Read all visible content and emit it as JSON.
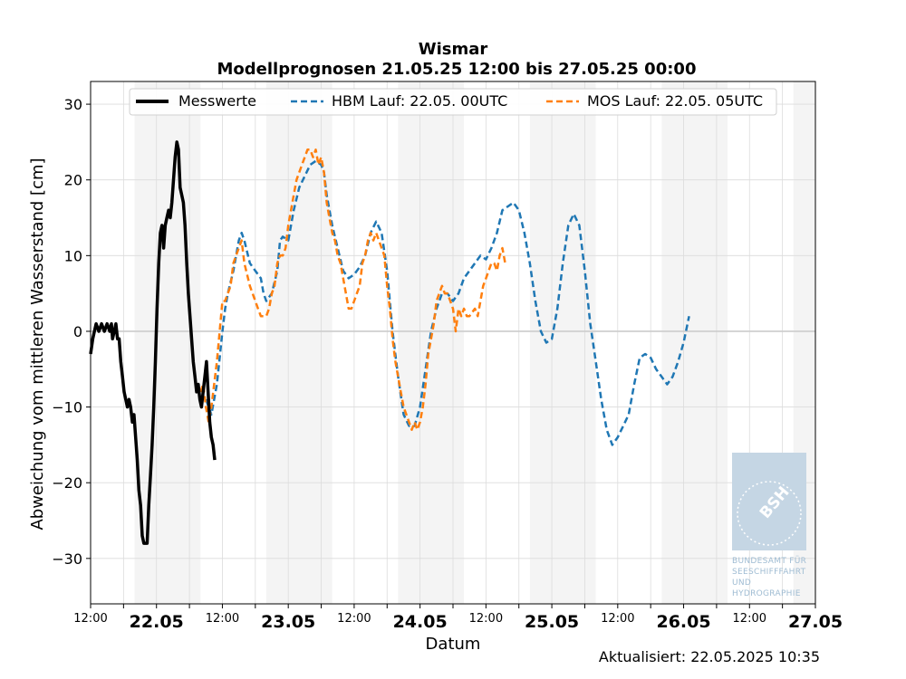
{
  "chart_data": {
    "type": "line",
    "title": "Wismar",
    "subtitle": "Modellprognosen 21.05.25 12:00 bis 27.05.25 00:00",
    "xlabel": "Datum",
    "ylabel": "Abweichung vom mittleren Wasserstand [cm]",
    "ylim": [
      -36,
      33
    ],
    "yticks": [
      -30,
      -20,
      -10,
      0,
      10,
      20,
      30
    ],
    "xlim": [
      0,
      132
    ],
    "x_unit": "hours since 21.05.25 12:00",
    "x_tick_labels": [
      {
        "x": 0,
        "label": "12:00",
        "major": false
      },
      {
        "x": 12,
        "label": "22.05",
        "major": true
      },
      {
        "x": 24,
        "label": "12:00",
        "major": false
      },
      {
        "x": 36,
        "label": "23.05",
        "major": true
      },
      {
        "x": 48,
        "label": "12:00",
        "major": false
      },
      {
        "x": 60,
        "label": "24.05",
        "major": true
      },
      {
        "x": 72,
        "label": "12:00",
        "major": false
      },
      {
        "x": 84,
        "label": "25.05",
        "major": true
      },
      {
        "x": 96,
        "label": "12:00",
        "major": false
      },
      {
        "x": 108,
        "label": "26.05",
        "major": true
      },
      {
        "x": 120,
        "label": "12:00",
        "major": false
      },
      {
        "x": 132,
        "label": "27.05",
        "major": true
      }
    ],
    "night_bands": [
      [
        8,
        20
      ],
      [
        32,
        44
      ],
      [
        56,
        68
      ],
      [
        80,
        92
      ],
      [
        104,
        116
      ],
      [
        128,
        132
      ]
    ],
    "grid": true,
    "legend_position": "top",
    "series": [
      {
        "name": "Messwerte",
        "style": "solid",
        "color": "#000000",
        "points": [
          [
            0,
            -3
          ],
          [
            0.4,
            -1
          ],
          [
            0.7,
            0
          ],
          [
            1,
            1
          ],
          [
            1.5,
            0
          ],
          [
            2,
            1
          ],
          [
            2.5,
            0
          ],
          [
            3,
            1
          ],
          [
            3.5,
            0
          ],
          [
            3.8,
            1
          ],
          [
            4,
            -1
          ],
          [
            4.3,
            0
          ],
          [
            4.6,
            1
          ],
          [
            4.9,
            -1
          ],
          [
            5.2,
            -1
          ],
          [
            5.5,
            -4
          ],
          [
            5.8,
            -6
          ],
          [
            6.1,
            -8
          ],
          [
            6.4,
            -9
          ],
          [
            6.7,
            -10
          ],
          [
            7,
            -9
          ],
          [
            7.3,
            -10
          ],
          [
            7.6,
            -12
          ],
          [
            7.9,
            -11
          ],
          [
            8.2,
            -14
          ],
          [
            8.5,
            -17
          ],
          [
            8.8,
            -21
          ],
          [
            9.1,
            -23
          ],
          [
            9.4,
            -27
          ],
          [
            9.7,
            -28
          ],
          [
            10,
            -28
          ],
          [
            10.3,
            -28
          ],
          [
            10.6,
            -23
          ],
          [
            10.9,
            -19
          ],
          [
            11.2,
            -15
          ],
          [
            11.5,
            -10
          ],
          [
            11.8,
            -4
          ],
          [
            12.1,
            3
          ],
          [
            12.4,
            9
          ],
          [
            12.7,
            13
          ],
          [
            13,
            14
          ],
          [
            13.3,
            11
          ],
          [
            13.6,
            14
          ],
          [
            13.9,
            15
          ],
          [
            14.2,
            16
          ],
          [
            14.5,
            15
          ],
          [
            14.8,
            17
          ],
          [
            15.1,
            20
          ],
          [
            15.4,
            23
          ],
          [
            15.7,
            25
          ],
          [
            16,
            24
          ],
          [
            16.3,
            19
          ],
          [
            16.6,
            18
          ],
          [
            16.9,
            17
          ],
          [
            17.2,
            14
          ],
          [
            17.5,
            9
          ],
          [
            17.8,
            5
          ],
          [
            18.1,
            2
          ],
          [
            18.4,
            -1
          ],
          [
            18.7,
            -4
          ],
          [
            19,
            -6
          ],
          [
            19.3,
            -8
          ],
          [
            19.6,
            -7
          ],
          [
            19.9,
            -9
          ],
          [
            20.2,
            -10
          ],
          [
            20.5,
            -8
          ],
          [
            20.8,
            -6
          ],
          [
            21.1,
            -4
          ],
          [
            21.4,
            -8
          ],
          [
            21.7,
            -12
          ],
          [
            22,
            -14
          ],
          [
            22.3,
            -15
          ],
          [
            22.6,
            -17
          ]
        ]
      },
      {
        "name": "HBM Lauf: 22.05. 00UTC",
        "style": "dashed",
        "color": "#1f77b4",
        "points": [
          [
            21,
            -9
          ],
          [
            22,
            -11
          ],
          [
            23,
            -7
          ],
          [
            24,
            0
          ],
          [
            24.5,
            3
          ],
          [
            25,
            5
          ],
          [
            26,
            8
          ],
          [
            27,
            12
          ],
          [
            27.5,
            13
          ],
          [
            28,
            12
          ],
          [
            29,
            9
          ],
          [
            30,
            8
          ],
          [
            31,
            7
          ],
          [
            31.5,
            5
          ],
          [
            32,
            4
          ],
          [
            33,
            5
          ],
          [
            34,
            8
          ],
          [
            34.5,
            12
          ],
          [
            35,
            12.5
          ],
          [
            36,
            12
          ],
          [
            37,
            16
          ],
          [
            38,
            19
          ],
          [
            39,
            20.5
          ],
          [
            40,
            22
          ],
          [
            41,
            22.5
          ],
          [
            42,
            22
          ],
          [
            42.5,
            21
          ],
          [
            43,
            18
          ],
          [
            44,
            14
          ],
          [
            45,
            11
          ],
          [
            46,
            8
          ],
          [
            47,
            7
          ],
          [
            48,
            7.5
          ],
          [
            49,
            8.5
          ],
          [
            50,
            10
          ],
          [
            51,
            13
          ],
          [
            52,
            14.5
          ],
          [
            53,
            13
          ],
          [
            54,
            8
          ],
          [
            55,
            0
          ],
          [
            56,
            -6
          ],
          [
            57,
            -11
          ],
          [
            58,
            -12.5
          ],
          [
            59,
            -12.5
          ],
          [
            60,
            -10
          ],
          [
            61,
            -5
          ],
          [
            62,
            0
          ],
          [
            63,
            3
          ],
          [
            64,
            5
          ],
          [
            65,
            5
          ],
          [
            66,
            4
          ],
          [
            67,
            5
          ],
          [
            68,
            7
          ],
          [
            69,
            8
          ],
          [
            70,
            9
          ],
          [
            71,
            10
          ],
          [
            72,
            9.5
          ],
          [
            73,
            11
          ],
          [
            74,
            13
          ],
          [
            75,
            16
          ],
          [
            76,
            16.5
          ],
          [
            77,
            17
          ],
          [
            78,
            16
          ],
          [
            79,
            13
          ],
          [
            80,
            9
          ],
          [
            81,
            4
          ],
          [
            82,
            0
          ],
          [
            83,
            -1.5
          ],
          [
            84,
            -1
          ],
          [
            85,
            3
          ],
          [
            86,
            9
          ],
          [
            87,
            14
          ],
          [
            88,
            15.5
          ],
          [
            89,
            14
          ],
          [
            90,
            8
          ],
          [
            91,
            1
          ],
          [
            92,
            -4
          ],
          [
            93,
            -9
          ],
          [
            94,
            -13
          ],
          [
            95,
            -15
          ],
          [
            96,
            -14
          ],
          [
            97,
            -12.5
          ],
          [
            98,
            -11
          ],
          [
            99,
            -7
          ],
          [
            100,
            -3.5
          ],
          [
            101,
            -3
          ],
          [
            102,
            -3.5
          ],
          [
            103,
            -5
          ],
          [
            104,
            -6
          ],
          [
            105,
            -7
          ],
          [
            106,
            -6
          ],
          [
            107,
            -4
          ],
          [
            108,
            -1.5
          ],
          [
            109,
            2
          ]
        ]
      },
      {
        "name": "MOS Lauf: 22.05. 05UTC",
        "style": "dashed",
        "color": "#ff7f0e",
        "points": [
          [
            20,
            -8
          ],
          [
            20.5,
            -7
          ],
          [
            21,
            -10
          ],
          [
            21.5,
            -12
          ],
          [
            22,
            -10
          ],
          [
            23,
            -4
          ],
          [
            24,
            4
          ],
          [
            24.5,
            4
          ],
          [
            25,
            5
          ],
          [
            25.5,
            6
          ],
          [
            26,
            9
          ],
          [
            26.5,
            10
          ],
          [
            27,
            11
          ],
          [
            27.5,
            12
          ],
          [
            28,
            9
          ],
          [
            29,
            6
          ],
          [
            30,
            4
          ],
          [
            30.5,
            3
          ],
          [
            31,
            2
          ],
          [
            31.5,
            2
          ],
          [
            32,
            2
          ],
          [
            32.5,
            3
          ],
          [
            33,
            5
          ],
          [
            33.5,
            6
          ],
          [
            34,
            9
          ],
          [
            34.5,
            10
          ],
          [
            35,
            10
          ],
          [
            35.5,
            11
          ],
          [
            36,
            14
          ],
          [
            36.5,
            16
          ],
          [
            37,
            18
          ],
          [
            37.5,
            20
          ],
          [
            38,
            21
          ],
          [
            38.5,
            22
          ],
          [
            39,
            23
          ],
          [
            39.5,
            24
          ],
          [
            40,
            24
          ],
          [
            40.5,
            23
          ],
          [
            41,
            24
          ],
          [
            41.5,
            22
          ],
          [
            42,
            23
          ],
          [
            42.5,
            21
          ],
          [
            43,
            17
          ],
          [
            43.5,
            15
          ],
          [
            44,
            13
          ],
          [
            44.5,
            12
          ],
          [
            45,
            10
          ],
          [
            45.5,
            9
          ],
          [
            46,
            7
          ],
          [
            46.5,
            5
          ],
          [
            47,
            3
          ],
          [
            47.5,
            3
          ],
          [
            48,
            4
          ],
          [
            48.5,
            5
          ],
          [
            49,
            6
          ],
          [
            49.5,
            9
          ],
          [
            50,
            10
          ],
          [
            50.5,
            12
          ],
          [
            51,
            13
          ],
          [
            51.5,
            12
          ],
          [
            52,
            13
          ],
          [
            52.5,
            12
          ],
          [
            53,
            11
          ],
          [
            53.5,
            10
          ],
          [
            54,
            6
          ],
          [
            54.5,
            3
          ],
          [
            55,
            -1
          ],
          [
            55.5,
            -4
          ],
          [
            56,
            -6
          ],
          [
            56.5,
            -8
          ],
          [
            57,
            -10
          ],
          [
            57.5,
            -11
          ],
          [
            58,
            -12
          ],
          [
            58.5,
            -13
          ],
          [
            59,
            -12
          ],
          [
            59.5,
            -13
          ],
          [
            60,
            -12
          ],
          [
            60.5,
            -10
          ],
          [
            61,
            -7
          ],
          [
            61.5,
            -3
          ],
          [
            62,
            -1
          ],
          [
            62.5,
            1
          ],
          [
            63,
            4
          ],
          [
            63.5,
            5
          ],
          [
            64,
            6
          ],
          [
            64.5,
            5
          ],
          [
            65,
            5
          ],
          [
            65.5,
            4
          ],
          [
            66,
            3
          ],
          [
            66.5,
            0
          ],
          [
            67,
            3
          ],
          [
            67.5,
            2
          ],
          [
            68,
            3
          ],
          [
            68.5,
            2
          ],
          [
            69,
            2
          ],
          [
            70,
            3
          ],
          [
            70.5,
            2
          ],
          [
            71,
            4
          ],
          [
            71.5,
            6
          ],
          [
            72,
            7
          ],
          [
            72.5,
            8
          ],
          [
            73,
            9
          ],
          [
            73.5,
            9
          ],
          [
            74,
            8
          ],
          [
            74.5,
            10
          ],
          [
            75,
            11
          ],
          [
            75.5,
            9
          ]
        ]
      }
    ]
  },
  "legend": [
    {
      "label": "Messwerte",
      "color": "#000000",
      "style": "solid"
    },
    {
      "label": "HBM Lauf: 22.05. 00UTC",
      "color": "#1f77b4",
      "style": "dashed"
    },
    {
      "label": "MOS Lauf: 22.05. 05UTC",
      "color": "#ff7f0e",
      "style": "dashed"
    }
  ],
  "updated_text": "Aktualisiert: 22.05.2025 10:35",
  "logo": {
    "name": "bsh-logo",
    "abbr": "BSH",
    "lines": [
      "BUNDESAMT FÜR",
      "SEESCHIFFFAHRT",
      "UND",
      "HYDROGRAPHIE"
    ]
  }
}
